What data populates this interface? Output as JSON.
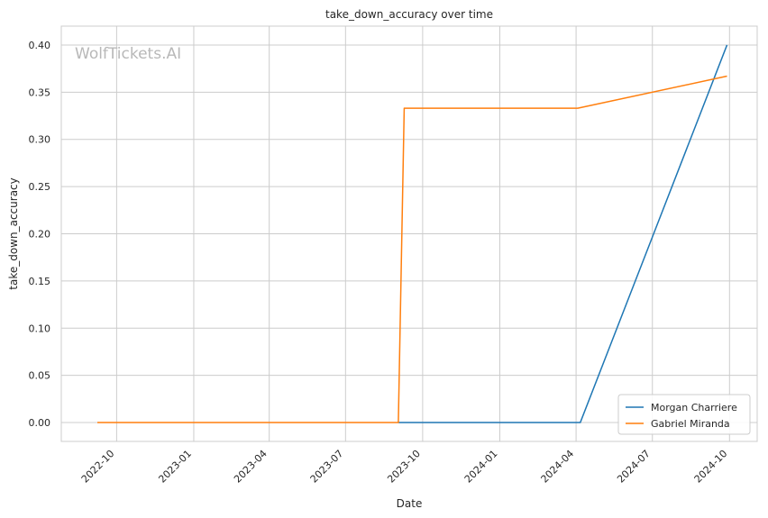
{
  "chart_data": {
    "type": "line",
    "title": "take_down_accuracy over time",
    "xlabel": "Date",
    "ylabel": "take_down_accuracy",
    "watermark": "WolfTickets.AI",
    "x_type": "date",
    "xlim": [
      "2022-07-27",
      "2024-11-03"
    ],
    "ylim": [
      -0.02,
      0.42
    ],
    "x_ticks": [
      "2022-10-01",
      "2023-01-01",
      "2023-04-01",
      "2023-07-01",
      "2023-10-01",
      "2024-01-01",
      "2024-04-01",
      "2024-07-01",
      "2024-10-01"
    ],
    "x_tick_labels": [
      "2022-10",
      "2023-01",
      "2023-04",
      "2023-07",
      "2023-10",
      "2024-01",
      "2024-04",
      "2024-07",
      "2024-10"
    ],
    "y_ticks": [
      0.0,
      0.05,
      0.1,
      0.15,
      0.2,
      0.25,
      0.3,
      0.35,
      0.4
    ],
    "y_tick_labels": [
      "0.00",
      "0.05",
      "0.10",
      "0.15",
      "0.20",
      "0.25",
      "0.30",
      "0.35",
      "0.40"
    ],
    "grid": true,
    "legend_position": "bottom-right",
    "series": [
      {
        "name": "Morgan Charriere",
        "color": "#1f77b4",
        "x": [
          "2023-09-02",
          "2024-04-06",
          "2024-09-28"
        ],
        "y": [
          0.0,
          0.0,
          0.4
        ]
      },
      {
        "name": "Gabriel Miranda",
        "color": "#ff7f0e",
        "x": [
          "2022-09-08",
          "2023-09-02",
          "2023-09-09",
          "2024-04-03",
          "2024-09-28"
        ],
        "y": [
          0.0,
          0.0,
          0.333,
          0.333,
          0.367
        ]
      }
    ]
  }
}
